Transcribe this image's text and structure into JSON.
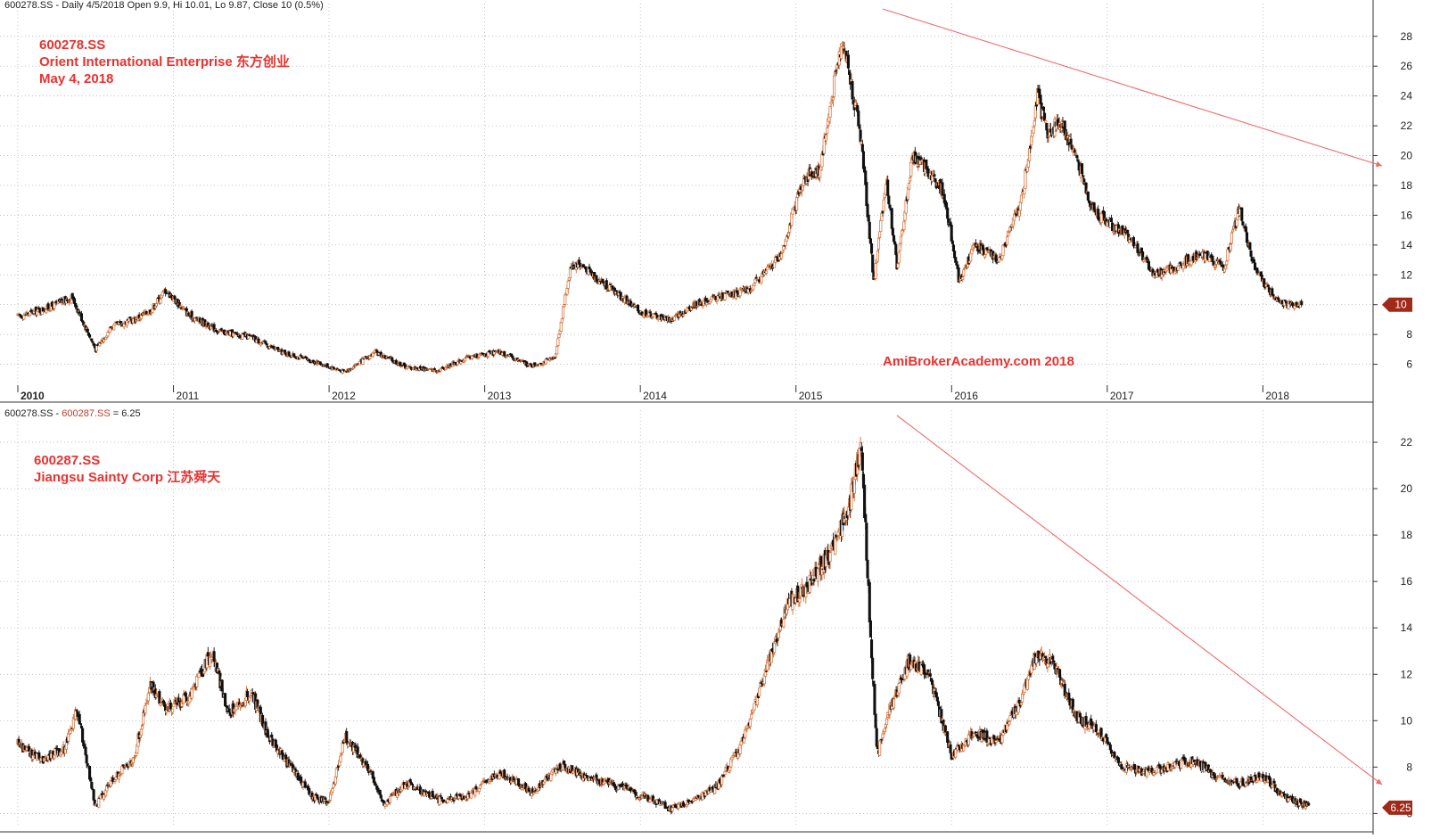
{
  "colors": {
    "up_candle": "#d2692e",
    "down_candle": "#111111",
    "grid": "#aaaaaa",
    "trendline": "#f06a6a",
    "annotation": "#e8322f",
    "price_badge": "#a0291a"
  },
  "top_panel": {
    "header_text": "600278.SS - Daily 4/5/2018 Open 9.9, Hi 10.01, Lo 9.87, Close 10 (0.5%)",
    "annotation_lines": [
      "600278.SS",
      "Orient International Enterprise  东方创业",
      "May 4, 2018"
    ],
    "watermark": "AmiBrokerAcademy.com  2018",
    "last_value_label": "10"
  },
  "bottom_panel": {
    "header_prefix": "600278.SS - ",
    "header_series": "600287.SS",
    "header_suffix": " = 6.25",
    "annotation_lines": [
      "600287.SS",
      "Jiangsu Sainty Corp 江苏舜天"
    ],
    "last_value_label": "6.25"
  },
  "chart_data": [
    {
      "type": "candlestick",
      "ticker": "600278.SS",
      "ylim": [
        4.6,
        29.6
      ],
      "y_ticks": [
        6,
        8,
        10,
        12,
        14,
        16,
        18,
        20,
        22,
        24,
        26,
        28
      ],
      "x_tick_labels": [
        "2010",
        "2011",
        "2012",
        "2013",
        "2014",
        "2015",
        "2016",
        "2017",
        "2018"
      ],
      "grid": true,
      "x": [
        2010.0,
        2010.2,
        2010.35,
        2010.5,
        2010.6,
        2010.75,
        2010.85,
        2010.95,
        2011.1,
        2011.3,
        2011.5,
        2011.7,
        2011.9,
        2012.1,
        2012.3,
        2012.5,
        2012.7,
        2012.9,
        2013.1,
        2013.3,
        2013.45,
        2013.55,
        2013.6,
        2013.72,
        2013.85,
        2014.0,
        2014.2,
        2014.35,
        2014.5,
        2014.7,
        2014.9,
        2015.05,
        2015.15,
        2015.3,
        2015.42,
        2015.5,
        2015.58,
        2015.65,
        2015.75,
        2015.85,
        2015.95,
        2016.05,
        2016.15,
        2016.3,
        2016.45,
        2016.55,
        2016.62,
        2016.7,
        2016.8,
        2016.9,
        2017.0,
        2017.15,
        2017.3,
        2017.45,
        2017.6,
        2017.75,
        2017.85,
        2017.95,
        2018.05,
        2018.15,
        2018.25
      ],
      "close": [
        9.2,
        9.8,
        10.5,
        7.0,
        8.5,
        9.0,
        9.6,
        11.0,
        9.3,
        8.2,
        7.8,
        6.8,
        6.2,
        5.5,
        6.8,
        5.8,
        5.6,
        6.5,
        6.8,
        5.9,
        6.4,
        12.5,
        12.8,
        11.8,
        10.8,
        9.5,
        9.0,
        10.0,
        10.5,
        11.0,
        13.3,
        18.5,
        19.0,
        28.0,
        21.0,
        11.5,
        18.5,
        12.5,
        20.0,
        19.0,
        17.5,
        11.5,
        14.0,
        13.0,
        17.0,
        24.0,
        21.5,
        22.3,
        20.0,
        16.5,
        15.5,
        14.5,
        12.0,
        12.5,
        13.5,
        12.5,
        16.5,
        12.3,
        10.8,
        10.0,
        10.0
      ]
    },
    {
      "type": "candlestick",
      "ticker": "600287.SS",
      "ylim": [
        5.4,
        23.0
      ],
      "y_ticks": [
        6,
        8,
        10,
        12,
        14,
        16,
        18,
        20,
        22
      ],
      "grid": true,
      "x": [
        2010.0,
        2010.15,
        2010.3,
        2010.38,
        2010.5,
        2010.6,
        2010.75,
        2010.85,
        2010.95,
        2011.1,
        2011.25,
        2011.35,
        2011.5,
        2011.6,
        2011.75,
        2011.9,
        2012.0,
        2012.1,
        2012.25,
        2012.35,
        2012.5,
        2012.7,
        2012.9,
        2013.1,
        2013.3,
        2013.5,
        2013.6,
        2013.8,
        2014.0,
        2014.2,
        2014.35,
        2014.5,
        2014.65,
        2014.8,
        2014.95,
        2015.1,
        2015.25,
        2015.35,
        2015.42,
        2015.47,
        2015.52,
        2015.6,
        2015.72,
        2015.85,
        2016.0,
        2016.15,
        2016.3,
        2016.45,
        2016.55,
        2016.65,
        2016.8,
        2016.95,
        2017.1,
        2017.25,
        2017.4,
        2017.55,
        2017.7,
        2017.85,
        2018.0,
        2018.15,
        2018.3
      ],
      "close": [
        9.0,
        8.3,
        8.8,
        10.5,
        6.3,
        7.4,
        8.5,
        11.5,
        10.5,
        11.0,
        13.0,
        10.3,
        11.2,
        9.5,
        8.0,
        6.7,
        6.5,
        9.3,
        8.0,
        6.4,
        7.3,
        6.6,
        6.8,
        7.8,
        6.9,
        8.1,
        7.7,
        7.3,
        6.8,
        6.2,
        6.6,
        7.2,
        9.0,
        12.0,
        15.0,
        16.0,
        17.5,
        19.5,
        22.0,
        15.0,
        8.5,
        10.5,
        12.5,
        12.2,
        8.5,
        9.5,
        9.0,
        11.0,
        13.0,
        12.5,
        10.2,
        9.5,
        8.0,
        7.8,
        8.0,
        8.3,
        7.6,
        7.3,
        7.6,
        6.7,
        6.25
      ]
    }
  ]
}
